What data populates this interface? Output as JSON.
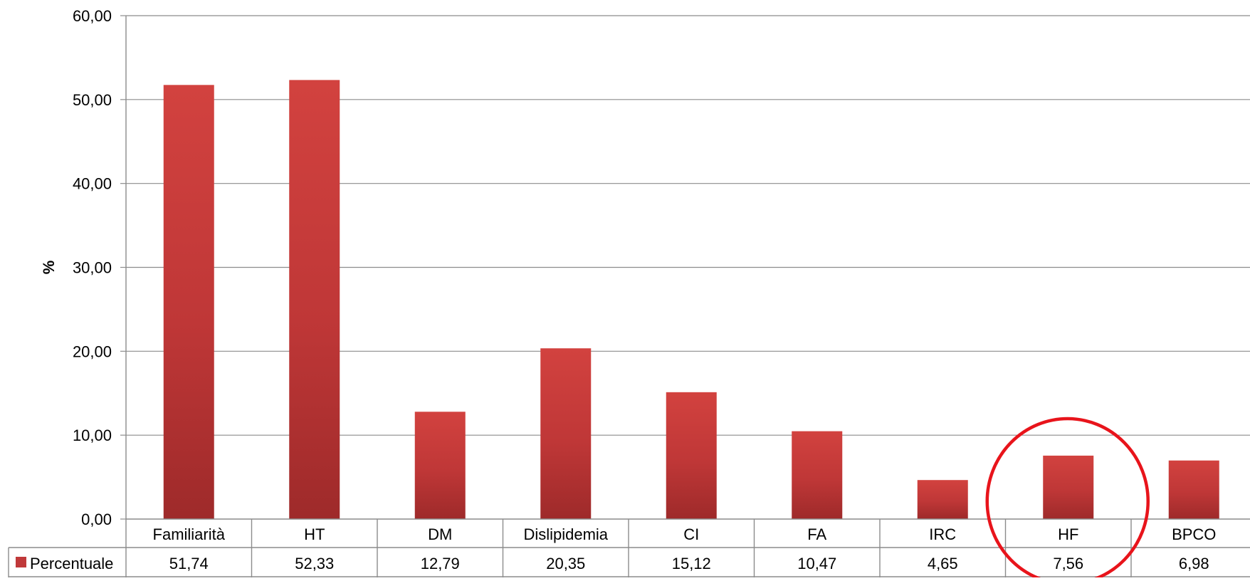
{
  "chart_data": {
    "type": "bar",
    "categories": [
      "Familiarità",
      "HT",
      "DM",
      "Dislipidemia",
      "CI",
      "FA",
      "IRC",
      "HF",
      "BPCO"
    ],
    "series": [
      {
        "name": "Percentuale",
        "values": [
          51.74,
          52.33,
          12.79,
          20.35,
          15.12,
          10.47,
          4.65,
          7.56,
          6.98
        ],
        "value_labels": [
          "51,74",
          "52,33",
          "12,79",
          "20,35",
          "15,12",
          "10,47",
          "4,65",
          "7,56",
          "6,98"
        ],
        "color": "#c0393a"
      }
    ],
    "ylabel": "%",
    "xlabel": "",
    "ylim": [
      0,
      60
    ],
    "yticks": [
      0,
      10,
      20,
      30,
      40,
      50,
      60
    ],
    "ytick_labels": [
      "0,00",
      "10,00",
      "20,00",
      "30,00",
      "40,00",
      "50,00",
      "60,00"
    ],
    "grid": true,
    "legend_placement": "data-table",
    "data_table": true,
    "highlight": {
      "category": "HF",
      "shape": "ellipse",
      "color": "#e8141b"
    }
  }
}
